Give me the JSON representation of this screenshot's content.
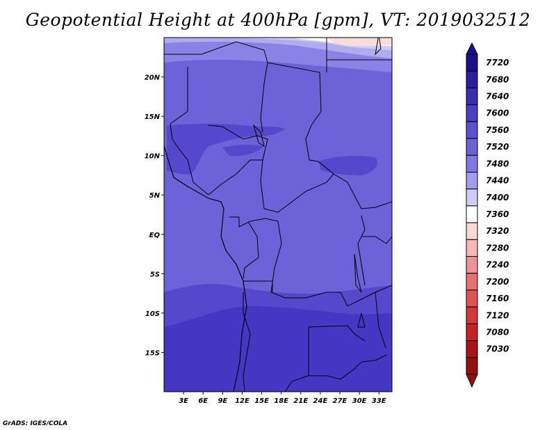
{
  "title": "Geopotential Height at 400hPa [gpm], VT: 2019032512",
  "credit": "GrADS: IGES/COLA",
  "map": {
    "lon_range": [
      0,
      35
    ],
    "lat_range": [
      -20,
      25
    ],
    "x_ticks": [
      "3E",
      "6E",
      "9E",
      "12E",
      "15E",
      "18E",
      "21E",
      "24E",
      "27E",
      "30E",
      "33E"
    ],
    "x_tick_values": [
      3,
      6,
      9,
      12,
      15,
      18,
      21,
      24,
      27,
      30,
      33
    ],
    "y_ticks": [
      "20N",
      "15N",
      "10N",
      "5N",
      "EQ",
      "5S",
      "10S",
      "15S"
    ],
    "y_tick_values": [
      20,
      15,
      10,
      5,
      0,
      -5,
      -10,
      -15
    ]
  },
  "colorbar": {
    "labels": [
      "7720",
      "7680",
      "7640",
      "7600",
      "7560",
      "7520",
      "7480",
      "7440",
      "7400",
      "7360",
      "7320",
      "7280",
      "7240",
      "7200",
      "7160",
      "7120",
      "7080",
      "7030"
    ],
    "colors": [
      "#1c0f8a",
      "#2a1f9e",
      "#3a2fb2",
      "#4a3fc4",
      "#5b50cf",
      "#6b62d8",
      "#8078e2",
      "#a39ded",
      "#cfcdf6",
      "#ffffff",
      "#fbd8d8",
      "#f5b8b8",
      "#ee9393",
      "#e87070",
      "#e15252",
      "#d53737",
      "#c42222",
      "#ab1414",
      "#921010"
    ],
    "top_color": "#1c0f8a",
    "bottom_color": "#921010"
  },
  "colors": {
    "band_dark": "#4437c3",
    "band_mid": "#5548cc",
    "band_light": "#6d63d8",
    "band_lighter": "#8a82e4",
    "band_pale": "#b1acef",
    "white": "#ffffff",
    "pink": "#f9dcdc"
  }
}
